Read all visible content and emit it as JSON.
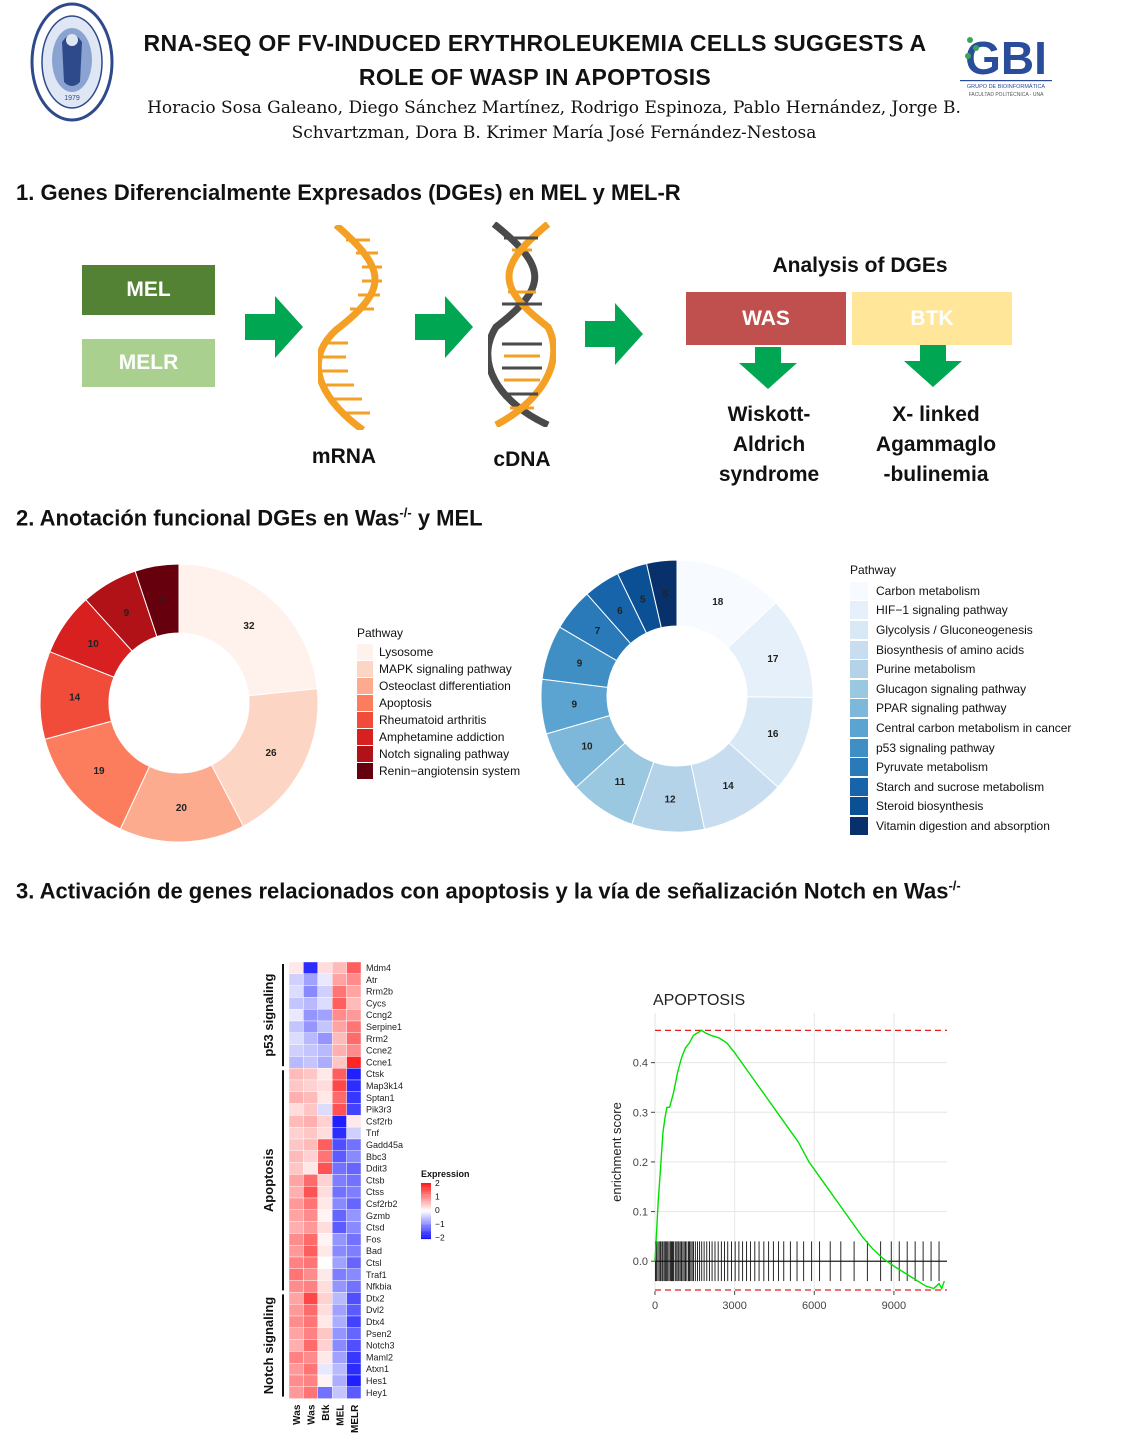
{
  "header": {
    "title_line1": "RNA-SEQ OF FV-INDUCED ERYTHROLEUKEMIA CELLS SUGGESTS A",
    "title_line2": "ROLE OF WASP IN APOPTOSIS",
    "authors_line1": "Horacio Sosa Galeano, Diego Sánchez Martínez, Rodrigo Espinoza, Pablo Hernández, Jorge B.",
    "authors_line2": "Schvartzman, Dora B. Krimer   María José Fernández-Nestosa",
    "seal_year": "1979",
    "gbi_logo": "GBI",
    "gbi_caption": "GRUPO DE BIOINFORMÁTICA",
    "gbi_subcaption": "FACULTAD POLITÉCNICA - UNA"
  },
  "section1": {
    "heading": "1. Genes Diferencialmente Expresados (DGEs) en MEL y MEL-R",
    "mel_label": "MEL",
    "melr_label": "MELR",
    "mrna_label": "mRNA",
    "cdna_label": "cDNA",
    "analysis_title": "Analysis of DGEs",
    "was_label": "WAS",
    "btk_label": "BTK",
    "was_disease_l1": "Wiskott-",
    "was_disease_l2": "Aldrich",
    "was_disease_l3": "syndrome",
    "btk_disease_l1": "X- linked",
    "btk_disease_l2": "Agammaglo",
    "btk_disease_l3": "-bulinemia",
    "colors": {
      "mel": "#548235",
      "melr": "#a9d08e",
      "was": "#c0504d",
      "btk": "#ffe699",
      "arrow": "#00a651",
      "dna_orange": "#f4a024",
      "dna_gray": "#4a4a4a"
    }
  },
  "section2": {
    "heading_prefix": "2. Anotación funcional DGEs en Was",
    "heading_sup": "-/-",
    "heading_suffix": " y MEL",
    "legend_left_title": "Pathway",
    "legend_right_title": "Pathway"
  },
  "section3": {
    "heading_prefix": "3. Activación de genes relacionados con apoptosis y la vía de señalización Notch en Was",
    "heading_sup": "-/-",
    "heatmap": {
      "groups": [
        {
          "label": "p53 signaling",
          "genes": [
            "Mdm4",
            "Atr",
            "Rrm2b",
            "Cycs",
            "Ccng2",
            "Serpine1",
            "Rrm2",
            "Ccne2",
            "Ccne1"
          ]
        },
        {
          "label": "Apoptosis",
          "genes": [
            "Ctsk",
            "Map3k14",
            "Sptan1",
            "Pik3r3",
            "Csf2rb",
            "Tnf",
            "Gadd45a",
            "Bbc3",
            "Ddit3",
            "Ctsb",
            "Ctss",
            "Csf2rb2",
            "Gzmb",
            "Ctsd",
            "Fos",
            "Bad",
            "Ctsl",
            "Traf1",
            "Nfkbia"
          ]
        },
        {
          "label": "Notch signaling",
          "genes": [
            "Dtx2",
            "Dvl2",
            "Dtx4",
            "Psen2",
            "Notch3",
            "Maml2",
            "Atxn1",
            "Hes1",
            "Hey1"
          ]
        }
      ],
      "columns": [
        "Was",
        "Was",
        "Btk",
        "MEL",
        "MELR"
      ],
      "legend_title": "Expression",
      "legend_ticks": [
        "2",
        "1",
        "0",
        "−1",
        "−2"
      ],
      "values": [
        [
          0.2,
          -1.8,
          0.3,
          0.6,
          1.4
        ],
        [
          -0.4,
          -0.8,
          -0.2,
          0.8,
          1.0
        ],
        [
          -0.3,
          -1.0,
          -0.4,
          1.2,
          0.8
        ],
        [
          -0.5,
          -0.6,
          -0.3,
          1.4,
          0.6
        ],
        [
          -0.2,
          -0.9,
          -0.8,
          1.0,
          0.9
        ],
        [
          -0.5,
          -0.9,
          -0.5,
          0.8,
          1.2
        ],
        [
          -0.3,
          -0.6,
          -0.9,
          0.6,
          1.3
        ],
        [
          -0.4,
          -0.5,
          -0.6,
          0.7,
          1.0
        ],
        [
          -0.6,
          -0.5,
          -0.7,
          0.5,
          1.9
        ],
        [
          0.6,
          0.5,
          0.2,
          1.4,
          -1.9
        ],
        [
          0.5,
          0.4,
          0.3,
          1.6,
          -1.8
        ],
        [
          0.7,
          0.6,
          0.2,
          1.3,
          -1.7
        ],
        [
          0.3,
          0.5,
          -0.3,
          1.5,
          -1.6
        ],
        [
          0.6,
          0.7,
          0.4,
          -1.9,
          0.2
        ],
        [
          0.4,
          0.5,
          0.3,
          -1.8,
          -0.4
        ],
        [
          0.5,
          0.6,
          1.4,
          -1.5,
          -1.2
        ],
        [
          0.6,
          0.4,
          1.2,
          -1.4,
          -1.0
        ],
        [
          0.5,
          0.2,
          1.5,
          -1.2,
          -1.3
        ],
        [
          0.8,
          1.3,
          0.4,
          -1.1,
          -1.2
        ],
        [
          0.7,
          1.5,
          0.3,
          -1.2,
          -1.1
        ],
        [
          0.9,
          1.2,
          0.2,
          -1.0,
          -1.3
        ],
        [
          0.8,
          1.0,
          0.1,
          -1.3,
          -0.9
        ],
        [
          0.7,
          0.9,
          0.3,
          -1.4,
          -1.0
        ],
        [
          1.0,
          1.3,
          0.1,
          -0.9,
          -1.2
        ],
        [
          0.9,
          1.4,
          0.2,
          -1.0,
          -1.1
        ],
        [
          1.1,
          1.2,
          0.0,
          -0.8,
          -1.3
        ],
        [
          1.2,
          1.0,
          0.2,
          -1.1,
          -1.0
        ],
        [
          1.0,
          1.1,
          0.3,
          -0.9,
          -1.2
        ],
        [
          0.8,
          1.6,
          0.4,
          -0.6,
          -1.5
        ],
        [
          0.9,
          1.3,
          0.3,
          -0.8,
          -1.4
        ],
        [
          1.0,
          1.2,
          0.2,
          -0.7,
          -1.6
        ],
        [
          0.8,
          1.1,
          0.5,
          -0.9,
          -1.3
        ],
        [
          0.7,
          1.3,
          0.4,
          -1.0,
          -1.5
        ],
        [
          1.1,
          1.0,
          0.2,
          -0.8,
          -1.7
        ],
        [
          0.9,
          1.2,
          -0.2,
          -0.6,
          -1.8
        ],
        [
          1.0,
          1.1,
          0.1,
          -0.7,
          -1.9
        ],
        [
          0.9,
          1.2,
          -1.2,
          -0.5,
          -1.4
        ]
      ]
    }
  },
  "chart_data": [
    {
      "type": "pie",
      "variant": "donut",
      "legend_title": "Pathway",
      "categories": [
        "Lysosome",
        "MAPK signaling pathway",
        "Osteoclast differentiation",
        "Apoptosis",
        "Rheumatoid arthritis",
        "Amphetamine addiction",
        "Notch signaling pathway",
        "Renin−angiotensin system"
      ],
      "values": [
        32,
        26,
        20,
        19,
        14,
        10,
        9,
        7
      ],
      "colors": [
        "#fff1ec",
        "#fdd5c4",
        "#fcab8f",
        "#fb7d5d",
        "#f14c3a",
        "#d7201f",
        "#b01217",
        "#67000d"
      ],
      "legend_placement": "right"
    },
    {
      "type": "pie",
      "variant": "donut",
      "legend_title": "Pathway",
      "categories": [
        "Carbon metabolism",
        "HIF−1 signaling pathway",
        "Glycolysis / Gluconeogenesis",
        "Biosynthesis of amino acids",
        "Purine metabolism",
        "Glucagon signaling pathway",
        "PPAR signaling pathway",
        "Central carbon metabolism in cancer",
        "p53 signaling pathway",
        "Pyruvate metabolism",
        "Starch and sucrose metabolism",
        "Steroid biosynthesis",
        "Vitamin digestion and absorption"
      ],
      "values": [
        18,
        17,
        16,
        14,
        12,
        11,
        10,
        9,
        9,
        7,
        6,
        5,
        5
      ],
      "colors": [
        "#f7fbff",
        "#e6f0fa",
        "#d8e8f5",
        "#c9ddf0",
        "#b4d3e9",
        "#9ac8e0",
        "#7db8da",
        "#5ba3d0",
        "#3f8fc4",
        "#2a7ab9",
        "#1764ab",
        "#0b4f94",
        "#08306b"
      ],
      "legend_placement": "right"
    },
    {
      "type": "line",
      "title": "APOPTOSIS",
      "xlabel": "",
      "ylabel": "enrichment score",
      "xlim": [
        0,
        11000
      ],
      "ylim": [
        -0.06,
        0.5
      ],
      "xticks": [
        0,
        3000,
        6000,
        9000
      ],
      "yticks": [
        0.0,
        0.1,
        0.2,
        0.3,
        0.4
      ],
      "ytick_labels": [
        "0.0",
        "0.1",
        "0.2",
        "0.3",
        "0.4"
      ],
      "dashed_lines": [
        0.465,
        -0.058
      ],
      "series": [
        {
          "x": [
            0,
            60,
            120,
            200,
            300,
            380,
            450,
            550,
            700,
            850,
            1000,
            1150,
            1300,
            1450,
            1600,
            1750,
            1900,
            2100,
            2400,
            2700,
            3000,
            3400,
            3800,
            4200,
            4600,
            5000,
            5400,
            5800,
            6200,
            6600,
            7000,
            7400,
            7800,
            8200,
            8600,
            9000,
            9300,
            9600,
            9900,
            10200,
            10500,
            10700,
            10800,
            10900
          ],
          "y": [
            0.0,
            0.06,
            0.12,
            0.18,
            0.26,
            0.29,
            0.31,
            0.31,
            0.34,
            0.38,
            0.41,
            0.43,
            0.44,
            0.455,
            0.46,
            0.465,
            0.46,
            0.455,
            0.45,
            0.44,
            0.42,
            0.39,
            0.36,
            0.33,
            0.3,
            0.27,
            0.24,
            0.2,
            0.17,
            0.14,
            0.11,
            0.08,
            0.05,
            0.025,
            0.005,
            -0.01,
            -0.02,
            -0.03,
            -0.04,
            -0.05,
            -0.055,
            -0.045,
            -0.055,
            -0.04
          ],
          "color": "#00e000"
        }
      ],
      "rug_hits": [
        20,
        60,
        110,
        160,
        210,
        260,
        300,
        350,
        400,
        440,
        480,
        530,
        580,
        620,
        660,
        700,
        760,
        800,
        860,
        900,
        950,
        1000,
        1050,
        1100,
        1150,
        1200,
        1260,
        1300,
        1350,
        1400,
        1450,
        1520,
        1600,
        1680,
        1760,
        1850,
        1950,
        2050,
        2150,
        2260,
        2380,
        2500,
        2620,
        2740,
        2880,
        3020,
        3160,
        3300,
        3450,
        3600,
        3760,
        3920,
        4100,
        4280,
        4460,
        4650,
        4850,
        5100,
        5350,
        5600,
        5900,
        6200,
        6600,
        7000,
        7500,
        8000,
        8500,
        8900,
        9200,
        9500,
        9800,
        10100,
        10400,
        10700
      ]
    }
  ]
}
